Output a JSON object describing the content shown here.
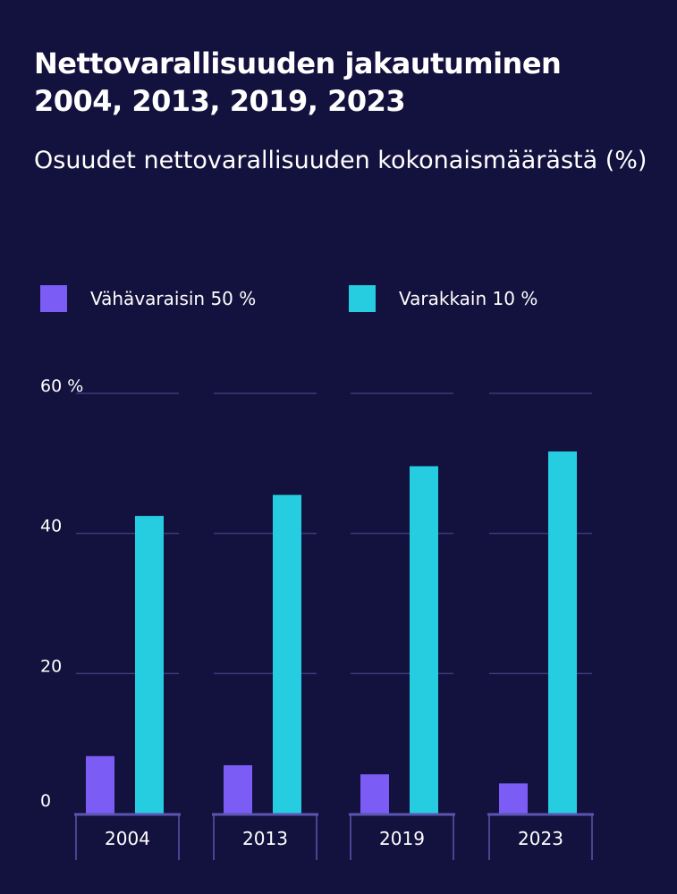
{
  "header": {
    "title": "Nettovarallisuuden jakautuminen 2004, 2013, 2019, 2023",
    "subtitle": "Osuudet nettovarallisuuden kokonaismäärästä (%)"
  },
  "colors": {
    "background": "#13113d",
    "series_low": "#7b5cf5",
    "series_high": "#26cde0",
    "grid": "#3d3a7a"
  },
  "chart_data": {
    "type": "bar",
    "title": "Nettovarallisuuden jakautuminen 2004, 2013, 2019, 2023",
    "subtitle": "Osuudet nettovarallisuuden kokonaismäärästä (%)",
    "categories": [
      "2004",
      "2013",
      "2019",
      "2023"
    ],
    "series": [
      {
        "name": "Vähävaraisin 50 %",
        "values": [
          8.2,
          6.9,
          5.6,
          4.3
        ]
      },
      {
        "name": "Varakkain 10 %",
        "values": [
          42.5,
          45.5,
          49.6,
          51.7
        ]
      }
    ],
    "y_ticks": [
      "0",
      "20",
      "40",
      "60 %"
    ],
    "ylim": [
      0,
      60
    ],
    "grid": true,
    "legend_position": "top-left"
  }
}
